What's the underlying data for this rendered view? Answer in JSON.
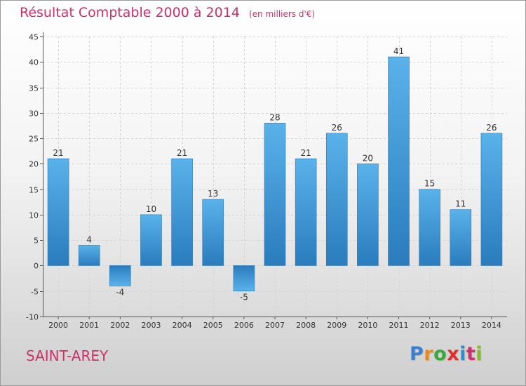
{
  "title": "Résultat Comptable 2000 à 2014",
  "unit": "(en milliers d'€)",
  "commune": "SAINT-AREY",
  "logo": {
    "letters": [
      "P",
      "r",
      "o",
      "x",
      "i",
      "t",
      "i"
    ],
    "colors": [
      "#3a7fd0",
      "#e98a1c",
      "#3aa83a",
      "#e0302c",
      "#2a8fd4",
      "#d0306a",
      "#8ab830"
    ]
  },
  "chart_data": {
    "type": "bar",
    "title": "Résultat Comptable 2000 à 2014",
    "xlabel": "",
    "ylabel": "",
    "categories": [
      "2000",
      "2001",
      "2002",
      "2003",
      "2004",
      "2005",
      "2006",
      "2007",
      "2008",
      "2009",
      "2010",
      "2011",
      "2012",
      "2013",
      "2014"
    ],
    "values": [
      21,
      4,
      -4,
      10,
      21,
      13,
      -5,
      28,
      21,
      26,
      20,
      41,
      15,
      11,
      26
    ],
    "ylim": [
      -10,
      45
    ],
    "yticks": [
      -10,
      -5,
      0,
      5,
      10,
      15,
      20,
      25,
      30,
      35,
      40,
      45
    ],
    "grid": true,
    "bar_color": "#4aa3e0"
  }
}
